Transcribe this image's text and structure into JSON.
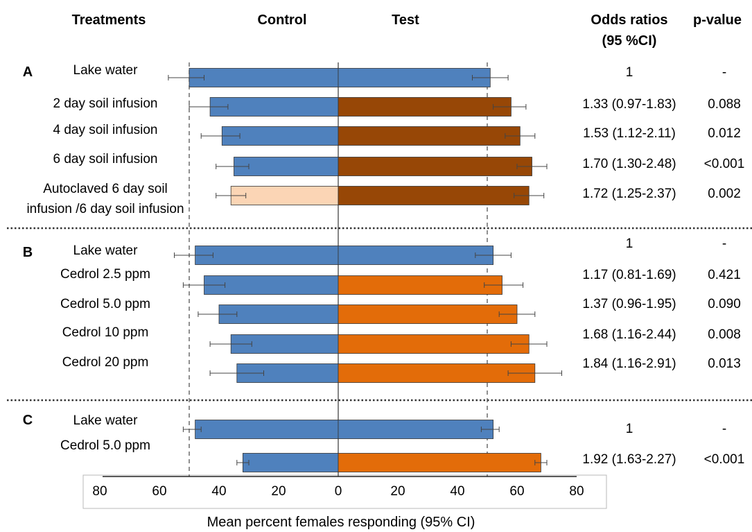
{
  "headers": {
    "treatments": "Treatments",
    "control": "Control",
    "test": "Test",
    "odds_line1": "Odds ratios",
    "odds_line2": "(95 %CI)",
    "pvalue": "p-value"
  },
  "colors": {
    "control_blue": "#4f81bd",
    "control_autoclaved": "#fbd5b5",
    "test_blue": "#4f81bd",
    "test_brown": "#974706",
    "test_orange": "#e36c09",
    "bar_stroke": "#333333"
  },
  "chart_data": {
    "type": "bar",
    "orientation": "horizontal-diverging",
    "xlabel": "Mean percent females responding (95% CI)",
    "xlim": [
      -80,
      80
    ],
    "x_ticks": [
      "80",
      "60",
      "40",
      "20",
      "0",
      "20",
      "40",
      "60",
      "80"
    ],
    "reference_lines": [
      -50,
      50
    ],
    "panels": [
      {
        "panel": "A",
        "rows": [
          {
            "label": [
              "Lake water"
            ],
            "control": 50,
            "control_ci": [
              45,
              57
            ],
            "test": 51,
            "test_ci": [
              45,
              57
            ],
            "control_color": "control_blue",
            "test_color": "test_blue",
            "odds": "1",
            "p": "-"
          },
          {
            "label": [
              "2 day soil infusion"
            ],
            "control": 43,
            "control_ci": [
              37,
              50
            ],
            "test": 58,
            "test_ci": [
              52,
              63
            ],
            "control_color": "control_blue",
            "test_color": "test_brown",
            "odds": "1.33 (0.97-1.83)",
            "p": "0.088"
          },
          {
            "label": [
              "4 day soil infusion"
            ],
            "control": 39,
            "control_ci": [
              33,
              46
            ],
            "test": 61,
            "test_ci": [
              56,
              66
            ],
            "control_color": "control_blue",
            "test_color": "test_brown",
            "odds": "1.53 (1.12-2.11)",
            "p": "0.012"
          },
          {
            "label": [
              "6 day soil infusion"
            ],
            "control": 35,
            "control_ci": [
              30,
              41
            ],
            "test": 65,
            "test_ci": [
              60,
              70
            ],
            "control_color": "control_blue",
            "test_color": "test_brown",
            "odds": "1.70 (1.30-2.48)",
            "p": "<0.001"
          },
          {
            "label": [
              "Autoclaved 6 day soil",
              "infusion /6 day soil infusion"
            ],
            "control": 36,
            "control_ci": [
              31,
              41
            ],
            "test": 64,
            "test_ci": [
              59,
              69
            ],
            "control_color": "control_autoclaved",
            "test_color": "test_brown",
            "odds": "1.72 (1.25-2.37)",
            "p": "0.002"
          }
        ]
      },
      {
        "panel": "B",
        "rows": [
          {
            "label": [
              "Lake water"
            ],
            "control": 48,
            "control_ci": [
              42,
              55
            ],
            "test": 52,
            "test_ci": [
              46,
              58
            ],
            "control_color": "control_blue",
            "test_color": "test_blue",
            "odds": "1",
            "p": "-"
          },
          {
            "label": [
              "Cedrol 2.5 ppm"
            ],
            "control": 45,
            "control_ci": [
              38,
              52
            ],
            "test": 55,
            "test_ci": [
              49,
              62
            ],
            "control_color": "control_blue",
            "test_color": "test_orange",
            "odds": "1.17 (0.81-1.69)",
            "p": "0.421"
          },
          {
            "label": [
              "Cedrol 5.0 ppm"
            ],
            "control": 40,
            "control_ci": [
              34,
              47
            ],
            "test": 60,
            "test_ci": [
              54,
              66
            ],
            "control_color": "control_blue",
            "test_color": "test_orange",
            "odds": "1.37 (0.96-1.95)",
            "p": "0.090"
          },
          {
            "label": [
              "Cedrol 10  ppm"
            ],
            "control": 36,
            "control_ci": [
              29,
              43
            ],
            "test": 64,
            "test_ci": [
              58,
              70
            ],
            "control_color": "control_blue",
            "test_color": "test_orange",
            "odds": "1.68 (1.16-2.44)",
            "p": "0.008"
          },
          {
            "label": [
              "Cedrol 20  ppm"
            ],
            "control": 34,
            "control_ci": [
              25,
              43
            ],
            "test": 66,
            "test_ci": [
              57,
              75
            ],
            "control_color": "control_blue",
            "test_color": "test_orange",
            "odds": "1.84 (1.16-2.91)",
            "p": "0.013"
          }
        ]
      },
      {
        "panel": "C",
        "rows": [
          {
            "label": [
              "Lake water"
            ],
            "control": 48,
            "control_ci": [
              46,
              52
            ],
            "test": 52,
            "test_ci": [
              48,
              54
            ],
            "control_color": "control_blue",
            "test_color": "test_blue",
            "odds": "1",
            "p": "-"
          },
          {
            "label": [
              "Cedrol 5.0 ppm"
            ],
            "control": 32,
            "control_ci": [
              30,
              34
            ],
            "test": 68,
            "test_ci": [
              66,
              70
            ],
            "control_color": "control_blue",
            "test_color": "test_orange",
            "odds": "1.92 (1.63-2.27)",
            "p": "<0.001"
          }
        ]
      }
    ]
  }
}
